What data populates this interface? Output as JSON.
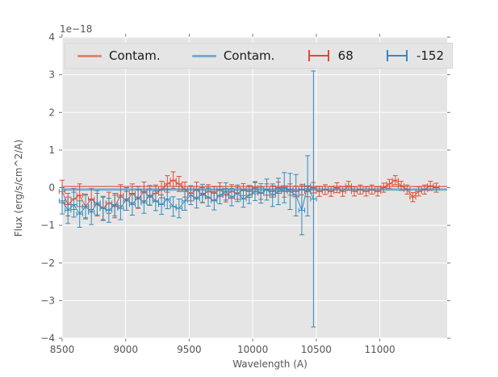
{
  "figure": {
    "background": "#ffffff",
    "axes_background": "#e5e5e5",
    "grid_color": "#ffffff",
    "tick_color": "#767676",
    "label_color": "#555555",
    "accent_red": "#e24a33",
    "accent_blue": "#348abd"
  },
  "labels": {
    "xlabel": "Wavelength (A)",
    "ylabel": "Flux (erg/s/cm^2/A)",
    "offset_text": "1e−18"
  },
  "legend": {
    "entries": [
      {
        "label": "Contam.",
        "marker": "line",
        "color": "#e24a33"
      },
      {
        "label": "Contam.",
        "marker": "line",
        "color": "#348abd"
      },
      {
        "label": "68",
        "marker": "errorbar",
        "color": "#e24a33"
      },
      {
        "label": "-152",
        "marker": "errorbar",
        "color": "#348abd"
      }
    ]
  },
  "chart_data": {
    "type": "line",
    "title": "",
    "xlabel": "Wavelength (A)",
    "ylabel": "Flux (erg/s/cm^2/A)",
    "y_offset_factor": "1e-18",
    "xlim": [
      8500,
      11530
    ],
    "ylim": [
      -4,
      4
    ],
    "xticks": [
      8500,
      9000,
      9500,
      10000,
      10500,
      11000
    ],
    "yticks": [
      -4,
      -3,
      -2,
      -1,
      0,
      1,
      2,
      3,
      4
    ],
    "grid": true,
    "legend_position": "upper center, horizontal, 4 columns",
    "series": [
      {
        "name": "Contam.",
        "type": "hline",
        "y": 0.03,
        "color": "#e24a33",
        "alpha": 0.62,
        "lw": 2
      },
      {
        "name": "Contam.",
        "type": "hline",
        "y": -0.05,
        "color": "#348abd",
        "alpha": 0.62,
        "lw": 3
      },
      {
        "name": "68",
        "type": "errorbar",
        "color": "#e24a33",
        "xerr": 23,
        "x": [
          8500,
          8546,
          8592,
          8638,
          8684,
          8730,
          8776,
          8822,
          8868,
          8914,
          8960,
          9006,
          9052,
          9098,
          9144,
          9190,
          9236,
          9282,
          9328,
          9374,
          9420,
          9466,
          9512,
          9558,
          9604,
          9650,
          9696,
          9742,
          9788,
          9834,
          9880,
          9926,
          9972,
          10018,
          10064,
          10110,
          10156,
          10202,
          10248,
          10294,
          10340,
          10386,
          10432,
          10478,
          10524,
          10570,
          10616,
          10662,
          10708,
          10754,
          10800,
          10846,
          10892,
          10938,
          10984,
          11030,
          11076,
          11122,
          11168,
          11214,
          11260,
          11306,
          11352,
          11398,
          11444
        ],
        "y": [
          -0.1,
          -0.45,
          -0.3,
          -0.2,
          -0.5,
          -0.3,
          -0.45,
          -0.55,
          -0.4,
          -0.5,
          -0.2,
          -0.35,
          -0.15,
          -0.3,
          -0.1,
          -0.25,
          -0.15,
          -0.05,
          0.1,
          0.2,
          0.1,
          -0.05,
          -0.15,
          -0.05,
          -0.2,
          -0.1,
          -0.15,
          -0.05,
          -0.2,
          -0.1,
          -0.15,
          -0.05,
          -0.1,
          0.0,
          -0.15,
          -0.05,
          -0.1,
          0.0,
          -0.1,
          -0.05,
          -0.1,
          -0.05,
          -0.1,
          0.0,
          -0.1,
          -0.05,
          -0.1,
          0.0,
          -0.1,
          0.05,
          -0.1,
          -0.05,
          -0.1,
          -0.05,
          -0.1,
          0.0,
          0.1,
          0.2,
          0.05,
          -0.05,
          -0.25,
          -0.1,
          -0.05,
          0.05,
          0.0
        ],
        "yerr": [
          0.3,
          0.3,
          0.28,
          0.3,
          0.3,
          0.28,
          0.3,
          0.3,
          0.28,
          0.3,
          0.28,
          0.25,
          0.25,
          0.25,
          0.25,
          0.22,
          0.22,
          0.22,
          0.22,
          0.22,
          0.2,
          0.2,
          0.2,
          0.2,
          0.2,
          0.18,
          0.18,
          0.18,
          0.18,
          0.18,
          0.16,
          0.16,
          0.16,
          0.16,
          0.16,
          0.15,
          0.15,
          0.15,
          0.15,
          0.15,
          0.14,
          0.14,
          0.14,
          0.14,
          0.13,
          0.13,
          0.13,
          0.13,
          0.13,
          0.12,
          0.12,
          0.12,
          0.12,
          0.12,
          0.12,
          0.12,
          0.12,
          0.12,
          0.12,
          0.12,
          0.12,
          0.12,
          0.12,
          0.12,
          0.12
        ]
      },
      {
        "name": "-152",
        "type": "errorbar",
        "color": "#348abd",
        "xerr": 23,
        "x": [
          8500,
          8546,
          8592,
          8638,
          8684,
          8730,
          8776,
          8822,
          8868,
          8914,
          8960,
          9006,
          9052,
          9098,
          9144,
          9190,
          9236,
          9282,
          9328,
          9374,
          9420,
          9466,
          9512,
          9558,
          9604,
          9650,
          9696,
          9742,
          9788,
          9834,
          9880,
          9926,
          9972,
          10018,
          10064,
          10110,
          10156,
          10202,
          10248,
          10294,
          10340,
          10386,
          10432,
          10478
        ],
        "y": [
          -0.35,
          -0.6,
          -0.45,
          -0.7,
          -0.5,
          -0.65,
          -0.4,
          -0.55,
          -0.6,
          -0.45,
          -0.55,
          -0.3,
          -0.45,
          -0.25,
          -0.4,
          -0.2,
          -0.35,
          -0.45,
          -0.3,
          -0.5,
          -0.55,
          -0.35,
          -0.2,
          -0.3,
          -0.15,
          -0.25,
          -0.35,
          -0.2,
          -0.1,
          -0.25,
          -0.15,
          -0.3,
          -0.2,
          -0.1,
          -0.15,
          -0.05,
          -0.2,
          -0.1,
          0.0,
          -0.1,
          -0.2,
          -0.6,
          0.05,
          -0.3
        ],
        "yerr": [
          0.35,
          0.35,
          0.33,
          0.35,
          0.33,
          0.33,
          0.32,
          0.32,
          0.32,
          0.3,
          0.3,
          0.3,
          0.28,
          0.28,
          0.28,
          0.26,
          0.26,
          0.26,
          0.26,
          0.26,
          0.25,
          0.25,
          0.25,
          0.24,
          0.24,
          0.24,
          0.24,
          0.23,
          0.23,
          0.23,
          0.22,
          0.22,
          0.22,
          0.24,
          0.26,
          0.28,
          0.3,
          0.35,
          0.4,
          0.48,
          0.55,
          0.65,
          0.8,
          3.4
        ]
      }
    ]
  }
}
